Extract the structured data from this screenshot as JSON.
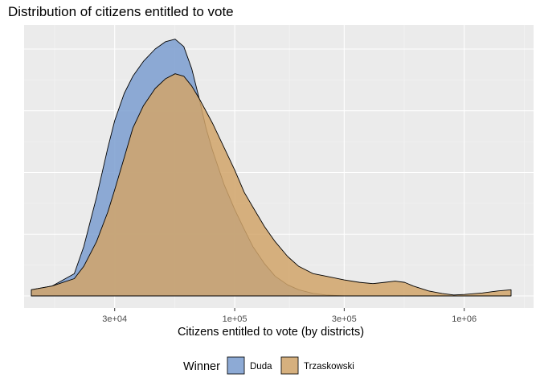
{
  "chart_data": {
    "type": "area",
    "subtype": "density",
    "title": "Distribution of citizens entitled to vote",
    "xlabel": "Citizens entitled to vote (by districts)",
    "ylabel": "",
    "x_scale": "log10",
    "xlim": [
      13000,
      1600000
    ],
    "x_ticks": [
      {
        "value": 30000,
        "label": "3e+04"
      },
      {
        "value": 100000,
        "label": "1e+05"
      },
      {
        "value": 300000,
        "label": "3e+05"
      },
      {
        "value": 1000000,
        "label": "1e+06"
      }
    ],
    "ylim": [
      0,
      1.06
    ],
    "y_tick_labels_shown": false,
    "grid": true,
    "background": "#EBEBEB",
    "legend": {
      "title": "Winner",
      "position": "bottom"
    },
    "series": [
      {
        "name": "Duda",
        "color": "#7B9ED0",
        "x": [
          13000,
          16000,
          20000,
          22000,
          25000,
          28000,
          30000,
          33000,
          36000,
          40000,
          45000,
          50000,
          55000,
          60000,
          65000,
          70000,
          75000,
          80000,
          90000,
          100000,
          110000,
          120000,
          135000,
          150000,
          170000,
          190000,
          220000,
          250000,
          300000
        ],
        "y": [
          0.025,
          0.04,
          0.09,
          0.2,
          0.4,
          0.6,
          0.71,
          0.82,
          0.89,
          0.95,
          1.0,
          1.03,
          1.04,
          1.01,
          0.92,
          0.8,
          0.68,
          0.59,
          0.45,
          0.35,
          0.27,
          0.2,
          0.13,
          0.08,
          0.045,
          0.025,
          0.01,
          0.004,
          0.0
        ]
      },
      {
        "name": "Trzaskowski",
        "color": "#D1A56A",
        "x": [
          13000,
          16000,
          20000,
          22000,
          25000,
          28000,
          30000,
          33000,
          36000,
          40000,
          45000,
          50000,
          55000,
          60000,
          65000,
          70000,
          80000,
          90000,
          100000,
          110000,
          120000,
          135000,
          150000,
          170000,
          190000,
          220000,
          250000,
          300000,
          350000,
          400000,
          450000,
          500000,
          550000,
          600000,
          700000,
          800000,
          900000,
          1000000,
          1200000,
          1400000,
          1600000
        ],
        "y": [
          0.025,
          0.04,
          0.07,
          0.12,
          0.22,
          0.34,
          0.43,
          0.56,
          0.68,
          0.77,
          0.84,
          0.88,
          0.9,
          0.89,
          0.85,
          0.8,
          0.7,
          0.6,
          0.51,
          0.42,
          0.36,
          0.28,
          0.22,
          0.16,
          0.12,
          0.09,
          0.08,
          0.065,
          0.055,
          0.05,
          0.055,
          0.06,
          0.055,
          0.04,
          0.02,
          0.01,
          0.004,
          0.006,
          0.012,
          0.02,
          0.025
        ]
      }
    ]
  }
}
